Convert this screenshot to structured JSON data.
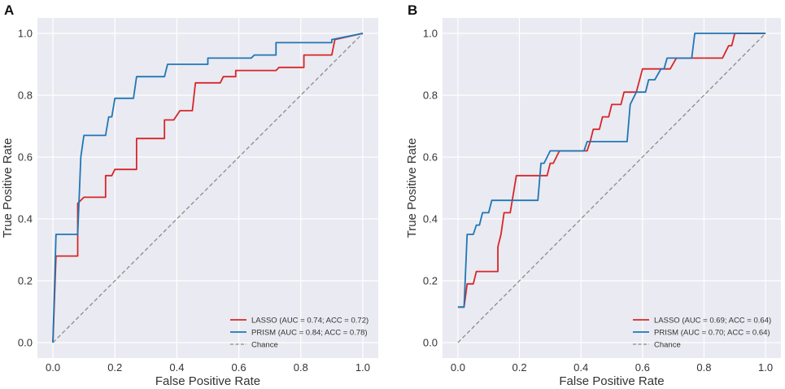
{
  "chart_data": [
    {
      "type": "line",
      "panel_label": "A",
      "xlabel": "False Positive Rate",
      "ylabel": "True Positive Rate",
      "xlim": [
        -0.05,
        1.05
      ],
      "ylim": [
        -0.05,
        1.05
      ],
      "xticks": [
        "0.0",
        "0.2",
        "0.4",
        "0.6",
        "0.8",
        "1.0"
      ],
      "yticks": [
        "0.0",
        "0.2",
        "0.4",
        "0.6",
        "0.8",
        "1.0"
      ],
      "grid": true,
      "legend_position": "bottom-right",
      "series": [
        {
          "name": "LASSO (AUC = 0.74; ACC = 0.72)",
          "color": "#d62728",
          "dash": "solid",
          "points": [
            [
              0,
              0
            ],
            [
              0.01,
              0.28
            ],
            [
              0.08,
              0.28
            ],
            [
              0.08,
              0.45
            ],
            [
              0.1,
              0.47
            ],
            [
              0.17,
              0.47
            ],
            [
              0.17,
              0.54
            ],
            [
              0.19,
              0.54
            ],
            [
              0.2,
              0.56
            ],
            [
              0.27,
              0.56
            ],
            [
              0.27,
              0.66
            ],
            [
              0.36,
              0.66
            ],
            [
              0.36,
              0.72
            ],
            [
              0.39,
              0.72
            ],
            [
              0.41,
              0.75
            ],
            [
              0.45,
              0.75
            ],
            [
              0.46,
              0.84
            ],
            [
              0.54,
              0.84
            ],
            [
              0.55,
              0.86
            ],
            [
              0.59,
              0.86
            ],
            [
              0.59,
              0.88
            ],
            [
              0.72,
              0.88
            ],
            [
              0.73,
              0.89
            ],
            [
              0.81,
              0.89
            ],
            [
              0.81,
              0.93
            ],
            [
              0.9,
              0.93
            ],
            [
              0.91,
              0.98
            ],
            [
              1,
              1
            ]
          ]
        },
        {
          "name": "PRISM (AUC = 0.84; ACC = 0.78)",
          "color": "#1f77b4",
          "dash": "solid",
          "points": [
            [
              0,
              0
            ],
            [
              0.01,
              0.35
            ],
            [
              0.08,
              0.35
            ],
            [
              0.09,
              0.6
            ],
            [
              0.1,
              0.67
            ],
            [
              0.17,
              0.67
            ],
            [
              0.18,
              0.73
            ],
            [
              0.19,
              0.73
            ],
            [
              0.2,
              0.79
            ],
            [
              0.26,
              0.79
            ],
            [
              0.27,
              0.86
            ],
            [
              0.36,
              0.86
            ],
            [
              0.37,
              0.9
            ],
            [
              0.5,
              0.9
            ],
            [
              0.5,
              0.92
            ],
            [
              0.64,
              0.92
            ],
            [
              0.65,
              0.93
            ],
            [
              0.72,
              0.93
            ],
            [
              0.72,
              0.97
            ],
            [
              0.9,
              0.97
            ],
            [
              0.9,
              0.98
            ],
            [
              1,
              1
            ]
          ]
        },
        {
          "name": "Chance",
          "color": "#8c8c8c",
          "dash": "dashed",
          "points": [
            [
              0,
              0
            ],
            [
              1,
              1
            ]
          ]
        }
      ]
    },
    {
      "type": "line",
      "panel_label": "B",
      "xlabel": "False Positive Rate",
      "ylabel": "True Positive Rate",
      "xlim": [
        -0.05,
        1.05
      ],
      "ylim": [
        -0.05,
        1.05
      ],
      "xticks": [
        "0.0",
        "0.2",
        "0.4",
        "0.6",
        "0.8",
        "1.0"
      ],
      "yticks": [
        "0.0",
        "0.2",
        "0.4",
        "0.6",
        "0.8",
        "1.0"
      ],
      "grid": true,
      "legend_position": "bottom-right",
      "series": [
        {
          "name": "LASSO (AUC = 0.69; ACC = 0.64)",
          "color": "#d62728",
          "dash": "solid",
          "points": [
            [
              0,
              0.115
            ],
            [
              0.02,
              0.115
            ],
            [
              0.03,
              0.19
            ],
            [
              0.05,
              0.19
            ],
            [
              0.06,
              0.23
            ],
            [
              0.07,
              0.23
            ],
            [
              0.08,
              0.23
            ],
            [
              0.13,
              0.23
            ],
            [
              0.13,
              0.31
            ],
            [
              0.14,
              0.35
            ],
            [
              0.15,
              0.42
            ],
            [
              0.17,
              0.42
            ],
            [
              0.19,
              0.54
            ],
            [
              0.29,
              0.54
            ],
            [
              0.3,
              0.58
            ],
            [
              0.31,
              0.58
            ],
            [
              0.33,
              0.62
            ],
            [
              0.42,
              0.62
            ],
            [
              0.43,
              0.65
            ],
            [
              0.44,
              0.69
            ],
            [
              0.46,
              0.69
            ],
            [
              0.47,
              0.73
            ],
            [
              0.49,
              0.73
            ],
            [
              0.5,
              0.77
            ],
            [
              0.53,
              0.77
            ],
            [
              0.54,
              0.81
            ],
            [
              0.58,
              0.81
            ],
            [
              0.6,
              0.885
            ],
            [
              0.69,
              0.885
            ],
            [
              0.71,
              0.92
            ],
            [
              0.86,
              0.92
            ],
            [
              0.88,
              0.96
            ],
            [
              0.89,
              0.96
            ],
            [
              0.9,
              1
            ],
            [
              1,
              1
            ]
          ]
        },
        {
          "name": "PRISM (AUC = 0.70; ACC = 0.64)",
          "color": "#1f77b4",
          "dash": "solid",
          "points": [
            [
              0,
              0.115
            ],
            [
              0.02,
              0.115
            ],
            [
              0.03,
              0.35
            ],
            [
              0.05,
              0.35
            ],
            [
              0.06,
              0.38
            ],
            [
              0.07,
              0.38
            ],
            [
              0.08,
              0.42
            ],
            [
              0.1,
              0.42
            ],
            [
              0.11,
              0.46
            ],
            [
              0.26,
              0.46
            ],
            [
              0.27,
              0.58
            ],
            [
              0.28,
              0.58
            ],
            [
              0.3,
              0.62
            ],
            [
              0.41,
              0.62
            ],
            [
              0.42,
              0.65
            ],
            [
              0.55,
              0.65
            ],
            [
              0.56,
              0.77
            ],
            [
              0.58,
              0.81
            ],
            [
              0.61,
              0.81
            ],
            [
              0.62,
              0.85
            ],
            [
              0.64,
              0.85
            ],
            [
              0.66,
              0.885
            ],
            [
              0.67,
              0.885
            ],
            [
              0.68,
              0.92
            ],
            [
              0.76,
              0.92
            ],
            [
              0.77,
              1
            ],
            [
              1,
              1
            ]
          ]
        },
        {
          "name": "Chance",
          "color": "#8c8c8c",
          "dash": "dashed",
          "points": [
            [
              0,
              0
            ],
            [
              1,
              1
            ]
          ]
        }
      ]
    }
  ]
}
